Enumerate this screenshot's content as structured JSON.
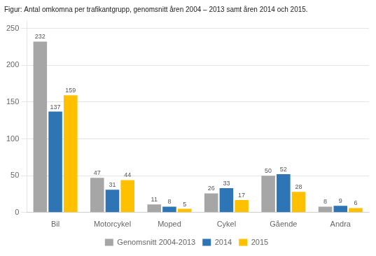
{
  "chart_data": {
    "type": "bar",
    "title": "Figur: Antal omkomna per trafikantgrupp, genomsnitt åren 2004 – 2013 samt åren 2014 och 2015.",
    "categories": [
      "Bil",
      "Motorcykel",
      "Moped",
      "Cykel",
      "Gående",
      "Andra"
    ],
    "series": [
      {
        "name": "Genomsnitt 2004-2013",
        "color": "#a6a6a6",
        "values": [
          232,
          47,
          11,
          26,
          50,
          8
        ]
      },
      {
        "name": "2014",
        "color": "#2e75b6",
        "values": [
          137,
          31,
          8,
          33,
          52,
          9
        ]
      },
      {
        "name": "2015",
        "color": "#ffc000",
        "values": [
          159,
          44,
          5,
          17,
          28,
          6
        ]
      }
    ],
    "ylim": [
      0,
      260
    ],
    "yticks": [
      0,
      50,
      100,
      150,
      200,
      250
    ],
    "grid": true,
    "legend": "bottom",
    "data_labels": true
  }
}
